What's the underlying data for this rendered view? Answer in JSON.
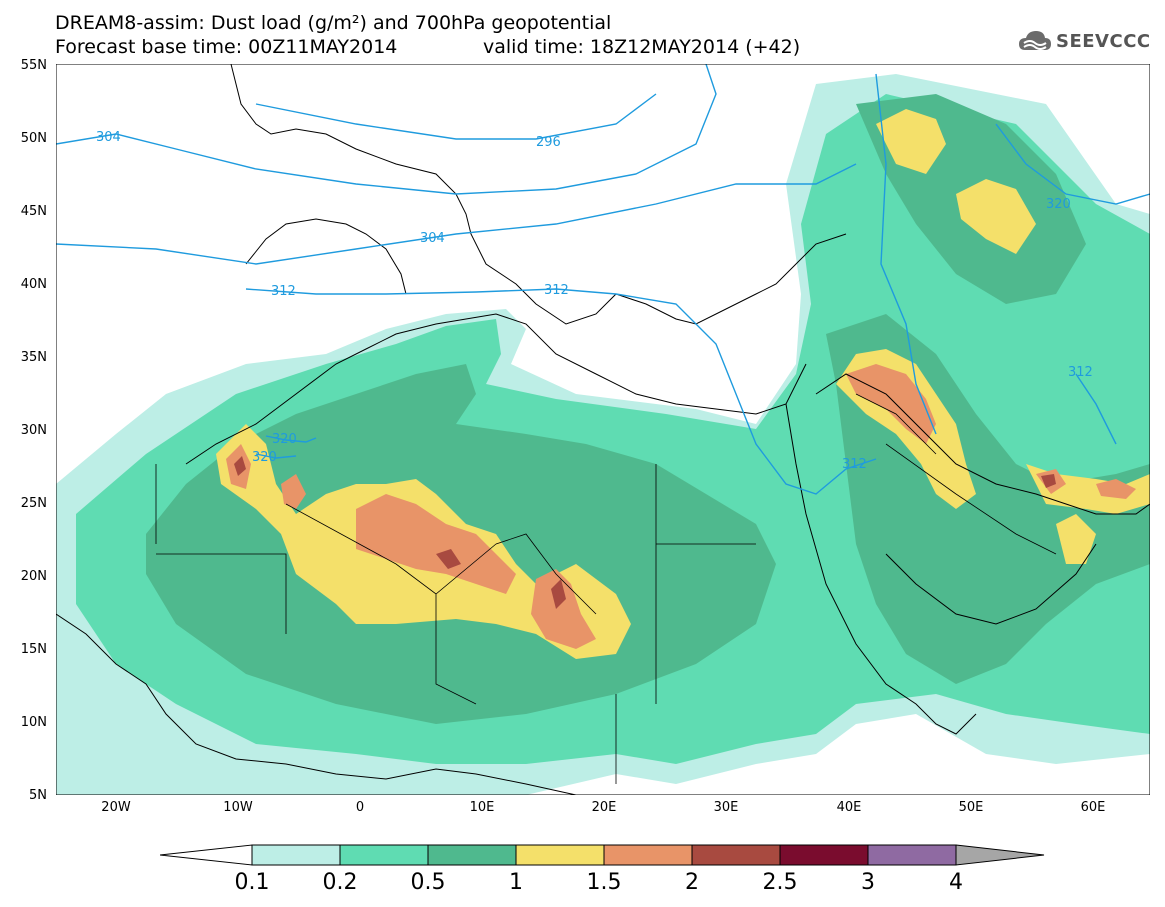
{
  "title": {
    "line1": "DREAM8-assim: Dust load (g/m²) and 700hPa geopotential",
    "line2": "Forecast base time: 00Z11MAY2014",
    "valid": "valid time: 18Z12MAY2014 (+42)"
  },
  "logo": {
    "text": "SEEVCCC",
    "icon": "cloud-logo-icon"
  },
  "lat_labels": [
    "55N",
    "50N",
    "45N",
    "40N",
    "35N",
    "30N",
    "25N",
    "20N",
    "15N",
    "10N",
    "5N"
  ],
  "lon_labels": [
    "20W",
    "10W",
    "0",
    "10E",
    "20E",
    "30E",
    "40E",
    "50E",
    "60E"
  ],
  "contour_labels": [
    "304",
    "296",
    "304",
    "312",
    "312",
    "320",
    "320",
    "312",
    "320",
    "312"
  ],
  "colorbar": {
    "labels": [
      "0.1",
      "0.2",
      "0.5",
      "1",
      "1.5",
      "2",
      "2.5",
      "3",
      "4"
    ],
    "colors": [
      "#bdeee6",
      "#5fdcb2",
      "#4fb98e",
      "#f4e06a",
      "#e89468",
      "#a84a40",
      "#7a0c2e",
      "#8f6aa2"
    ],
    "ends": {
      "low": "#ffffff",
      "high": "#a6a6a6"
    }
  },
  "colors": {
    "contour": "#1f9bde",
    "coast": "#000000",
    "bg": "#ffffff"
  }
}
